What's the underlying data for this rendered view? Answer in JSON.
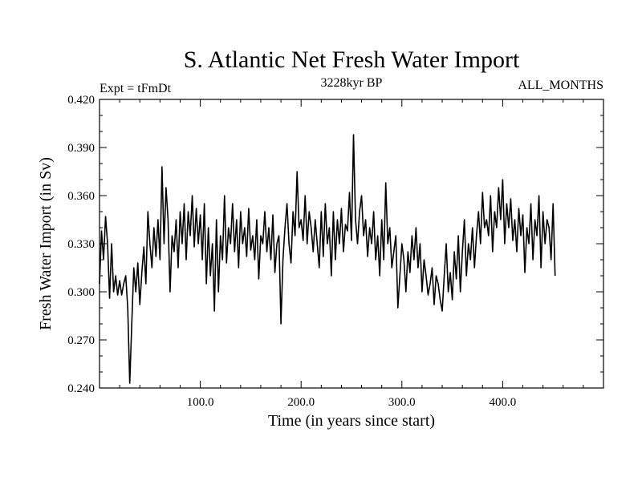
{
  "chart_data": {
    "type": "line",
    "title": "S. Atlantic Net Fresh Water Import",
    "subtitle_left": "Expt = tFmDt",
    "subtitle_center": "3228kyr BP",
    "subtitle_right": "ALL_MONTHS",
    "xlabel": "Time (in years since start)",
    "ylabel": "Fresh Water Import (in Sv)",
    "xlim": [
      0,
      500
    ],
    "ylim": [
      0.24,
      0.42
    ],
    "x_ticks": [
      100,
      200,
      300,
      400
    ],
    "x_tick_labels": [
      "100.0",
      "200.0",
      "300.0",
      "400.0"
    ],
    "y_ticks": [
      0.24,
      0.27,
      0.3,
      0.33,
      0.36,
      0.39,
      0.42
    ],
    "y_tick_labels": [
      "0.240",
      "0.270",
      "0.300",
      "0.330",
      "0.360",
      "0.390",
      "0.420"
    ],
    "grid": false,
    "series": [
      {
        "name": "S. Atlantic Net Fresh Water Import",
        "color": "#000000",
        "x_start": 0,
        "x_step": 2,
        "values": [
          0.305,
          0.338,
          0.32,
          0.347,
          0.33,
          0.296,
          0.33,
          0.3,
          0.31,
          0.298,
          0.307,
          0.298,
          0.305,
          0.31,
          0.29,
          0.243,
          0.28,
          0.315,
          0.3,
          0.318,
          0.292,
          0.312,
          0.328,
          0.305,
          0.35,
          0.33,
          0.315,
          0.34,
          0.322,
          0.345,
          0.32,
          0.378,
          0.33,
          0.365,
          0.345,
          0.3,
          0.335,
          0.325,
          0.345,
          0.315,
          0.35,
          0.33,
          0.355,
          0.32,
          0.35,
          0.335,
          0.36,
          0.328,
          0.352,
          0.33,
          0.348,
          0.32,
          0.355,
          0.305,
          0.34,
          0.31,
          0.33,
          0.288,
          0.345,
          0.3,
          0.335,
          0.32,
          0.36,
          0.318,
          0.34,
          0.33,
          0.355,
          0.325,
          0.345,
          0.315,
          0.35,
          0.33,
          0.34,
          0.322,
          0.352,
          0.326,
          0.335,
          0.32,
          0.345,
          0.308,
          0.335,
          0.33,
          0.35,
          0.325,
          0.34,
          0.32,
          0.348,
          0.312,
          0.33,
          0.335,
          0.28,
          0.32,
          0.34,
          0.355,
          0.33,
          0.318,
          0.35,
          0.335,
          0.375,
          0.34,
          0.345,
          0.332,
          0.36,
          0.33,
          0.35,
          0.34,
          0.325,
          0.345,
          0.33,
          0.315,
          0.35,
          0.322,
          0.355,
          0.33,
          0.34,
          0.31,
          0.35,
          0.32,
          0.345,
          0.33,
          0.352,
          0.325,
          0.342,
          0.338,
          0.362,
          0.332,
          0.398,
          0.345,
          0.33,
          0.35,
          0.36,
          0.335,
          0.345,
          0.322,
          0.34,
          0.33,
          0.35,
          0.32,
          0.335,
          0.31,
          0.345,
          0.32,
          0.368,
          0.33,
          0.34,
          0.315,
          0.325,
          0.335,
          0.29,
          0.31,
          0.33,
          0.32,
          0.3,
          0.325,
          0.312,
          0.335,
          0.32,
          0.34,
          0.315,
          0.33,
          0.3,
          0.32,
          0.31,
          0.298,
          0.305,
          0.315,
          0.292,
          0.31,
          0.305,
          0.295,
          0.288,
          0.31,
          0.33,
          0.3,
          0.312,
          0.295,
          0.325,
          0.308,
          0.335,
          0.3,
          0.325,
          0.345,
          0.31,
          0.33,
          0.32,
          0.34,
          0.315,
          0.335,
          0.35,
          0.33,
          0.362,
          0.34,
          0.345,
          0.335,
          0.36,
          0.325,
          0.35,
          0.34,
          0.365,
          0.345,
          0.37,
          0.33,
          0.355,
          0.34,
          0.358,
          0.332,
          0.345,
          0.325,
          0.352,
          0.335,
          0.348,
          0.312,
          0.34,
          0.33,
          0.355,
          0.32,
          0.345,
          0.335,
          0.36,
          0.315,
          0.35,
          0.33,
          0.345,
          0.34,
          0.32,
          0.355,
          0.31
        ]
      }
    ]
  }
}
